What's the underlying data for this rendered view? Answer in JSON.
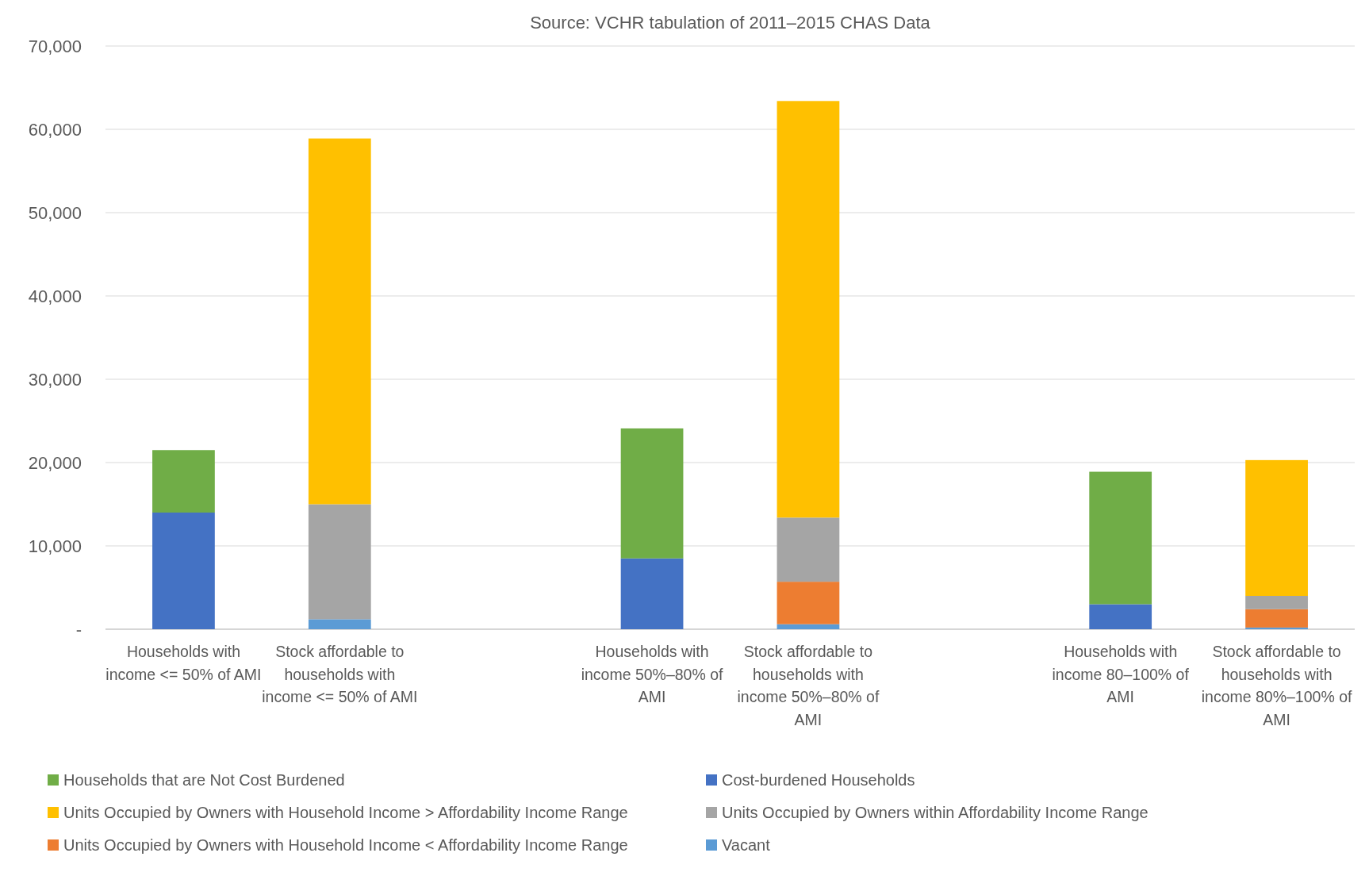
{
  "chart_data": {
    "type": "bar",
    "stacked": true,
    "title": "Source: VCHR tabulation of 2011–2015 CHAS Data",
    "categories": [
      "Households with income <= 50% of AMI",
      "Stock affordable to households with income <= 50% of AMI",
      null,
      "Households with income 50%–80% of AMI",
      "Stock affordable to households with income 50%–80% of AMI",
      null,
      "Households with income 80–100% of AMI",
      "Stock affordable to households with income 80%–100% of AMI"
    ],
    "series": [
      {
        "name": "Vacant",
        "color": "#5b9bd5",
        "values": [
          null,
          1200,
          null,
          null,
          600,
          null,
          null,
          200
        ]
      },
      {
        "name": "Units Occupied by Owners with Household Income < Affordability Income Range",
        "color": "#ed7d31",
        "values": [
          null,
          null,
          null,
          null,
          5100,
          null,
          null,
          2200
        ]
      },
      {
        "name": "Units Occupied by Owners within Affordability Income Range",
        "color": "#a5a5a5",
        "values": [
          null,
          13800,
          null,
          null,
          7700,
          null,
          null,
          1600
        ]
      },
      {
        "name": "Units Occupied by Owners with Household Income > Affordability Income Range",
        "color": "#ffc000",
        "values": [
          null,
          43900,
          null,
          null,
          50000,
          null,
          null,
          16300
        ]
      },
      {
        "name": "Cost-burdened Households",
        "color": "#4472c4",
        "values": [
          14000,
          null,
          null,
          8500,
          null,
          null,
          3000,
          null
        ]
      },
      {
        "name": "Households that are Not Cost Burdened",
        "color": "#70ad47",
        "values": [
          7500,
          null,
          null,
          15600,
          null,
          null,
          15900,
          null
        ]
      }
    ],
    "ylim": [
      0,
      70000
    ],
    "yticks": [
      {
        "value": 0,
        "label": "-"
      },
      {
        "value": 10000,
        "label": "10,000"
      },
      {
        "value": 20000,
        "label": "20,000"
      },
      {
        "value": 30000,
        "label": "30,000"
      },
      {
        "value": 40000,
        "label": "40,000"
      },
      {
        "value": 50000,
        "label": "50,000"
      },
      {
        "value": 60000,
        "label": "60,000"
      },
      {
        "value": 70000,
        "label": "70,000"
      }
    ],
    "grid": "y",
    "legend": "bottom"
  }
}
